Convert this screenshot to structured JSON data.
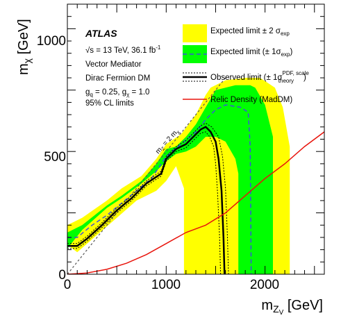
{
  "chart_data": {
    "type": "area",
    "xlabel": "m",
    "xlabel_sub": "Z",
    "xlabel_subsub": "V",
    "xlabel_unit": "[GeV]",
    "ylabel": "m",
    "ylabel_sub": "χ",
    "ylabel_unit": "[GeV]",
    "xlim": [
      0,
      2600
    ],
    "ylim": [
      0,
      1100
    ],
    "x_ticks": [
      "0",
      "1000",
      "2000"
    ],
    "y_ticks": [
      "0",
      "500",
      "1000"
    ],
    "info": {
      "experiment": "ATLAS",
      "energy_lumi": "√s = 13 TeV, 36.1 fb",
      "energy_lumi_sup": "-1",
      "model": "Vector Mediator",
      "dm_type": "Dirac Fermion DM",
      "couplings_q": "g",
      "couplings_q_sub": "q",
      "couplings_q_val": " = 0.25, g",
      "couplings_x_sub": "χ",
      "couplings_x_val": " = 1.0",
      "cl": "95% CL limits"
    },
    "legend": {
      "placement": "top-right",
      "expected_2sigma": "Expected limit ± 2 σ",
      "expected_2sigma_sub": "exp",
      "expected_1sigma": "Expected limit (± 1σ",
      "expected_1sigma_sub": "exp",
      "expected_1sigma_close": ")",
      "observed": "Observed limit (± 1σ",
      "observed_sup": "PDF, scale",
      "observed_sub": "theory",
      "observed_close": ")",
      "relic": "Relic Density (MadDM)"
    },
    "diagonal_label": "m",
    "diagonal_label_sub": "Z",
    "diagonal_label_mid": " = 2 m",
    "diagonal_label_sub2": "χ",
    "colors": {
      "band_2sigma": "#ffff00",
      "band_1sigma": "#00ff00",
      "expected": "#3b50e0",
      "observed": "#000000",
      "relic": "#e8140c",
      "diagonal": "#555555"
    },
    "series": [
      {
        "name": "Expected limit ± 2 σ",
        "polygon": [
          [
            0,
            120
          ],
          [
            0,
            200
          ],
          [
            150,
            230
          ],
          [
            400,
            300
          ],
          [
            550,
            350
          ],
          [
            750,
            400
          ],
          [
            900,
            470
          ],
          [
            1000,
            530
          ],
          [
            1150,
            570
          ],
          [
            1300,
            650
          ],
          [
            1400,
            730
          ],
          [
            1450,
            760
          ],
          [
            1600,
            790
          ],
          [
            1800,
            800
          ],
          [
            1950,
            800
          ],
          [
            2100,
            760
          ],
          [
            2180,
            680
          ],
          [
            2250,
            520
          ],
          [
            2250,
            0
          ],
          [
            1180,
            0
          ],
          [
            1180,
            350
          ],
          [
            1100,
            440
          ],
          [
            1000,
            380
          ],
          [
            900,
            340
          ],
          [
            700,
            300
          ],
          [
            500,
            230
          ],
          [
            300,
            160
          ],
          [
            100,
            90
          ]
        ]
      },
      {
        "name": "Expected limit (± 1σ)",
        "polygon": [
          [
            0,
            105
          ],
          [
            0,
            170
          ],
          [
            150,
            200
          ],
          [
            400,
            280
          ],
          [
            550,
            320
          ],
          [
            750,
            380
          ],
          [
            900,
            450
          ],
          [
            1000,
            510
          ],
          [
            1100,
            520
          ],
          [
            1200,
            560
          ],
          [
            1300,
            610
          ],
          [
            1400,
            680
          ],
          [
            1500,
            750
          ],
          [
            1700,
            770
          ],
          [
            1850,
            770
          ],
          [
            1900,
            760
          ],
          [
            2000,
            690
          ],
          [
            2080,
            560
          ],
          [
            2080,
            0
          ],
          [
            1730,
            0
          ],
          [
            1730,
            410
          ],
          [
            1700,
            470
          ],
          [
            1600,
            540
          ],
          [
            1500,
            560
          ],
          [
            1400,
            560
          ],
          [
            1300,
            520
          ],
          [
            1200,
            500
          ],
          [
            1100,
            490
          ],
          [
            1000,
            460
          ],
          [
            900,
            420
          ],
          [
            750,
            370
          ],
          [
            550,
            310
          ],
          [
            400,
            270
          ],
          [
            150,
            180
          ]
        ]
      },
      {
        "name": "Expected limit (± 1σexp)",
        "points": [
          [
            0,
            150
          ],
          [
            100,
            150
          ],
          [
            250,
            200
          ],
          [
            400,
            240
          ],
          [
            550,
            290
          ],
          [
            700,
            340
          ],
          [
            850,
            390
          ],
          [
            1000,
            480
          ],
          [
            1150,
            530
          ],
          [
            1300,
            580
          ],
          [
            1400,
            630
          ],
          [
            1500,
            670
          ],
          [
            1600,
            690
          ],
          [
            1750,
            680
          ],
          [
            1830,
            660
          ],
          [
            1850,
            520
          ],
          [
            1860,
            0
          ]
        ]
      },
      {
        "name": "Observed limit",
        "points": [
          [
            0,
            115
          ],
          [
            100,
            115
          ],
          [
            200,
            145
          ],
          [
            350,
            200
          ],
          [
            500,
            260
          ],
          [
            650,
            310
          ],
          [
            800,
            370
          ],
          [
            950,
            410
          ],
          [
            1000,
            470
          ],
          [
            1100,
            510
          ],
          [
            1200,
            530
          ],
          [
            1300,
            570
          ],
          [
            1350,
            590
          ],
          [
            1400,
            600
          ],
          [
            1450,
            580
          ],
          [
            1500,
            540
          ],
          [
            1530,
            470
          ],
          [
            1560,
            340
          ],
          [
            1580,
            150
          ],
          [
            1590,
            0
          ]
        ]
      },
      {
        "name": "Observed limit +1σ",
        "points": [
          [
            0,
            125
          ],
          [
            100,
            125
          ],
          [
            200,
            155
          ],
          [
            350,
            210
          ],
          [
            500,
            270
          ],
          [
            650,
            320
          ],
          [
            800,
            380
          ],
          [
            950,
            420
          ],
          [
            1000,
            480
          ],
          [
            1100,
            520
          ],
          [
            1200,
            545
          ],
          [
            1300,
            585
          ],
          [
            1350,
            605
          ],
          [
            1400,
            615
          ],
          [
            1460,
            600
          ],
          [
            1530,
            560
          ],
          [
            1570,
            480
          ],
          [
            1600,
            350
          ],
          [
            1620,
            150
          ],
          [
            1630,
            0
          ]
        ]
      },
      {
        "name": "Observed limit -1σ",
        "points": [
          [
            0,
            105
          ],
          [
            100,
            105
          ],
          [
            200,
            135
          ],
          [
            350,
            190
          ],
          [
            500,
            250
          ],
          [
            650,
            300
          ],
          [
            800,
            360
          ],
          [
            950,
            400
          ],
          [
            1000,
            460
          ],
          [
            1100,
            500
          ],
          [
            1200,
            515
          ],
          [
            1300,
            555
          ],
          [
            1350,
            575
          ],
          [
            1400,
            580
          ],
          [
            1440,
            560
          ],
          [
            1480,
            520
          ],
          [
            1500,
            450
          ],
          [
            1520,
            330
          ],
          [
            1540,
            150
          ],
          [
            1550,
            0
          ]
        ]
      },
      {
        "name": "Relic Density (MadDM)",
        "points": [
          [
            0,
            0
          ],
          [
            200,
            5
          ],
          [
            400,
            20
          ],
          [
            600,
            45
          ],
          [
            800,
            80
          ],
          [
            1000,
            125
          ],
          [
            1200,
            170
          ],
          [
            1400,
            200
          ],
          [
            1600,
            250
          ],
          [
            1800,
            320
          ],
          [
            2000,
            390
          ],
          [
            2200,
            450
          ],
          [
            2400,
            520
          ],
          [
            2600,
            580
          ]
        ]
      }
    ]
  }
}
